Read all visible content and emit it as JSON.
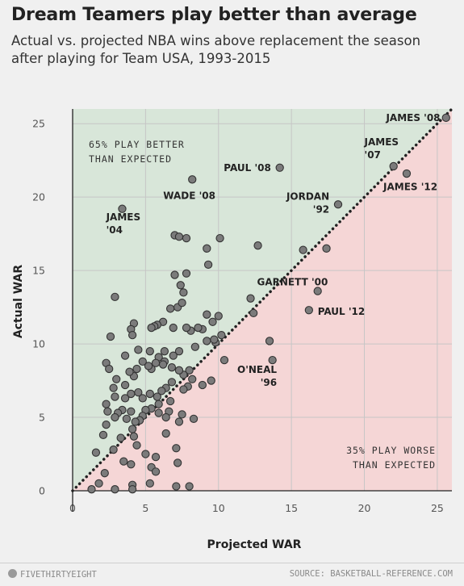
{
  "header": {
    "title": "Dream Teamers play better than average",
    "subtitle": "Actual vs. projected NBA wins above replacement the season after playing for Team USA, 1993-2015"
  },
  "footer": {
    "brand": "FIVETHIRTYEIGHT",
    "source": "SOURCE: BASKETBALL-REFERENCE.COM"
  },
  "colors": {
    "above": "#d8e6d9",
    "below": "#f5d6d6",
    "point_fill": "#7b7b7b",
    "point_stroke": "#333333"
  },
  "chart_data": {
    "type": "scatter",
    "xlabel": "Projected WAR",
    "ylabel": "Actual WAR",
    "xlim": [
      0,
      26
    ],
    "ylim": [
      0,
      26
    ],
    "xticks": [
      0,
      5,
      10,
      15,
      20,
      25
    ],
    "yticks": [
      0,
      5,
      10,
      15,
      20,
      25
    ],
    "grid": true,
    "reference_line": "y = x",
    "region_notes": {
      "above": [
        "65% PLAY BETTER",
        "THAN EXPECTED"
      ],
      "below": [
        "35% PLAY WORSE",
        "THAN EXPECTED"
      ]
    },
    "labels": [
      {
        "lines": [
          "JAMES '08"
        ],
        "x": 25.6,
        "y": 25.4,
        "anchor": "end",
        "dx": -0.4,
        "dy": 0
      },
      {
        "lines": [
          "JAMES",
          "'07"
        ],
        "x": 22.0,
        "y": 22.1,
        "anchor": "start",
        "dx": -2.0,
        "dy": 1.2
      },
      {
        "lines": [
          "JAMES '12"
        ],
        "x": 22.9,
        "y": 21.6,
        "anchor": "start",
        "dx": -1.6,
        "dy": -0.9
      },
      {
        "lines": [
          "PAUL '08"
        ],
        "x": 14.2,
        "y": 22.0,
        "anchor": "end",
        "dx": -0.6,
        "dy": 0
      },
      {
        "lines": [
          "WADE '08"
        ],
        "x": 8.2,
        "y": 21.2,
        "anchor": "middle",
        "dx": -0.2,
        "dy": -1.1
      },
      {
        "lines": [
          "JORDAN",
          "'92"
        ],
        "x": 18.2,
        "y": 19.5,
        "anchor": "end",
        "dx": -0.6,
        "dy": 0.1
      },
      {
        "lines": [
          "JAMES",
          "'04"
        ],
        "x": 3.4,
        "y": 19.2,
        "anchor": "start",
        "dx": -1.1,
        "dy": -1.0
      },
      {
        "lines": [
          "GARNETT '00"
        ],
        "x": 16.8,
        "y": 13.6,
        "anchor": "end",
        "dx": 0.7,
        "dy": 0.6
      },
      {
        "lines": [
          "PAUL '12"
        ],
        "x": 16.2,
        "y": 12.3,
        "anchor": "start",
        "dx": 0.6,
        "dy": -0.1
      },
      {
        "lines": [
          "O'NEAL",
          "'96"
        ],
        "x": 13.7,
        "y": 8.9,
        "anchor": "end",
        "dx": 0.3,
        "dy": -1.1
      }
    ],
    "points": [
      [
        25.6,
        25.4
      ],
      [
        22.0,
        22.1
      ],
      [
        22.9,
        21.6
      ],
      [
        14.2,
        22.0
      ],
      [
        8.2,
        21.2
      ],
      [
        18.2,
        19.5
      ],
      [
        3.4,
        19.2
      ],
      [
        16.8,
        13.6
      ],
      [
        16.2,
        12.3
      ],
      [
        13.7,
        8.9
      ],
      [
        13.5,
        10.2
      ],
      [
        12.4,
        12.1
      ],
      [
        12.2,
        13.1
      ],
      [
        15.8,
        16.4
      ],
      [
        17.4,
        16.5
      ],
      [
        12.7,
        16.7
      ],
      [
        10.1,
        17.2
      ],
      [
        7.0,
        17.4
      ],
      [
        7.3,
        17.3
      ],
      [
        7.8,
        17.2
      ],
      [
        9.2,
        16.5
      ],
      [
        9.3,
        15.4
      ],
      [
        7.8,
        14.8
      ],
      [
        7.0,
        14.7
      ],
      [
        7.4,
        14.0
      ],
      [
        7.6,
        13.5
      ],
      [
        7.2,
        12.5
      ],
      [
        6.7,
        12.4
      ],
      [
        7.5,
        12.8
      ],
      [
        2.9,
        13.2
      ],
      [
        10.0,
        11.9
      ],
      [
        9.2,
        12.0
      ],
      [
        9.6,
        11.5
      ],
      [
        8.9,
        11.0
      ],
      [
        8.6,
        11.1
      ],
      [
        8.1,
        10.9
      ],
      [
        7.8,
        11.1
      ],
      [
        6.9,
        11.1
      ],
      [
        6.2,
        11.5
      ],
      [
        5.8,
        11.3
      ],
      [
        5.6,
        11.2
      ],
      [
        5.4,
        11.1
      ],
      [
        4.2,
        11.4
      ],
      [
        4.0,
        11.0
      ],
      [
        4.1,
        10.6
      ],
      [
        2.6,
        10.5
      ],
      [
        10.2,
        10.6
      ],
      [
        9.8,
        10.1
      ],
      [
        9.7,
        10.3
      ],
      [
        9.2,
        10.2
      ],
      [
        8.4,
        9.8
      ],
      [
        7.3,
        9.5
      ],
      [
        6.9,
        9.2
      ],
      [
        6.3,
        9.5
      ],
      [
        5.9,
        9.1
      ],
      [
        5.3,
        9.5
      ],
      [
        4.5,
        9.6
      ],
      [
        3.6,
        9.2
      ],
      [
        10.4,
        8.9
      ],
      [
        8.0,
        8.2
      ],
      [
        7.6,
        7.9
      ],
      [
        7.3,
        8.2
      ],
      [
        6.8,
        8.4
      ],
      [
        6.3,
        8.8
      ],
      [
        6.2,
        8.6
      ],
      [
        5.7,
        8.7
      ],
      [
        5.4,
        8.3
      ],
      [
        5.2,
        8.5
      ],
      [
        4.8,
        8.8
      ],
      [
        4.4,
        8.3
      ],
      [
        4.2,
        7.8
      ],
      [
        3.9,
        8.1
      ],
      [
        3.6,
        7.2
      ],
      [
        3.0,
        7.6
      ],
      [
        2.3,
        8.7
      ],
      [
        2.5,
        8.3
      ],
      [
        9.5,
        7.5
      ],
      [
        8.9,
        7.2
      ],
      [
        8.2,
        7.6
      ],
      [
        7.9,
        7.1
      ],
      [
        7.6,
        6.9
      ],
      [
        6.8,
        7.4
      ],
      [
        6.4,
        7.0
      ],
      [
        6.1,
        6.8
      ],
      [
        5.8,
        6.4
      ],
      [
        5.3,
        6.6
      ],
      [
        4.8,
        6.3
      ],
      [
        4.5,
        6.7
      ],
      [
        4.0,
        6.6
      ],
      [
        3.6,
        6.3
      ],
      [
        2.8,
        7.0
      ],
      [
        2.9,
        6.4
      ],
      [
        2.3,
        5.9
      ],
      [
        6.7,
        6.1
      ],
      [
        5.9,
        5.9
      ],
      [
        8.3,
        4.9
      ],
      [
        7.5,
        5.2
      ],
      [
        7.3,
        4.7
      ],
      [
        6.6,
        5.4
      ],
      [
        6.4,
        5.0
      ],
      [
        5.9,
        5.3
      ],
      [
        5.4,
        5.6
      ],
      [
        5.0,
        5.5
      ],
      [
        4.8,
        5.1
      ],
      [
        4.6,
        4.8
      ],
      [
        4.3,
        4.7
      ],
      [
        4.0,
        5.4
      ],
      [
        3.7,
        4.9
      ],
      [
        3.4,
        5.5
      ],
      [
        3.1,
        5.3
      ],
      [
        2.9,
        5.0
      ],
      [
        2.4,
        5.4
      ],
      [
        2.3,
        4.5
      ],
      [
        2.1,
        3.8
      ],
      [
        4.1,
        4.2
      ],
      [
        4.2,
        3.7
      ],
      [
        6.4,
        3.9
      ],
      [
        7.1,
        2.9
      ],
      [
        3.3,
        3.6
      ],
      [
        2.8,
        2.8
      ],
      [
        4.4,
        3.1
      ],
      [
        5.0,
        2.5
      ],
      [
        5.7,
        2.3
      ],
      [
        1.6,
        2.6
      ],
      [
        3.5,
        2.0
      ],
      [
        4.0,
        1.8
      ],
      [
        5.4,
        1.6
      ],
      [
        5.7,
        1.3
      ],
      [
        7.2,
        1.9
      ],
      [
        2.2,
        1.2
      ],
      [
        1.8,
        0.5
      ],
      [
        4.1,
        0.4
      ],
      [
        5.3,
        0.5
      ],
      [
        7.1,
        0.3
      ],
      [
        8.0,
        0.3
      ],
      [
        1.3,
        0.1
      ],
      [
        2.9,
        0.1
      ],
      [
        4.1,
        0.1
      ]
    ]
  }
}
